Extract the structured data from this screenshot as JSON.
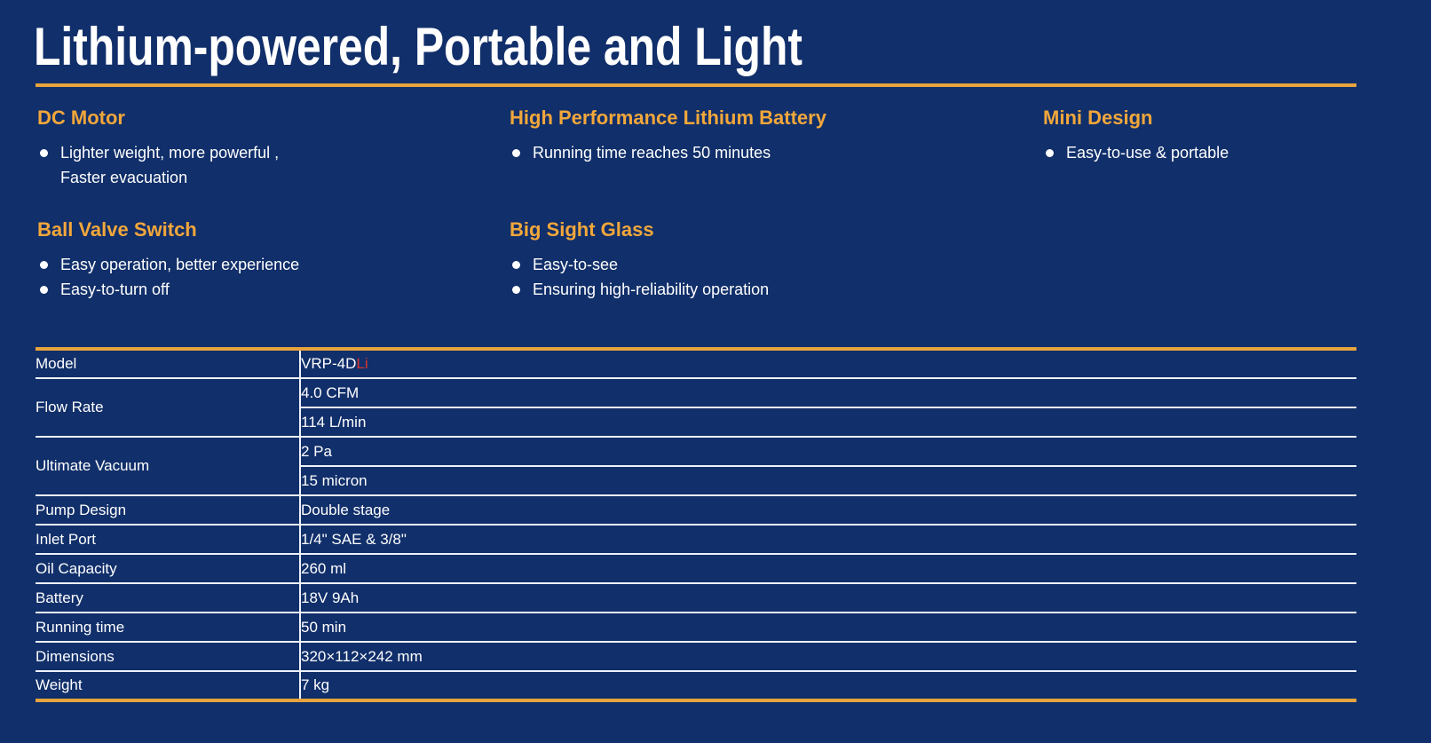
{
  "page": {
    "title": "Lithium-powered, Portable and Light"
  },
  "colors": {
    "background_navy": "#112f6a",
    "rule_gold": "#e7a43c",
    "heading_orange": "#f2a73b",
    "body_text_white": "#ffffff",
    "model_suffix_red": "#d9372e",
    "table_line_white": "#eef2f8"
  },
  "features": [
    {
      "heading": "DC Motor",
      "items": [
        {
          "lines": [
            "Lighter weight, more powerful ,",
            "Faster evacuation"
          ]
        }
      ]
    },
    {
      "heading": "High Performance Lithium Battery",
      "items": [
        {
          "lines": [
            "Running time reaches 50 minutes"
          ]
        }
      ]
    },
    {
      "heading": "Mini Design",
      "items": [
        {
          "lines": [
            "Easy-to-use & portable"
          ]
        }
      ]
    },
    {
      "heading": "Ball Valve Switch",
      "items": [
        {
          "lines": [
            "Easy operation, better experience"
          ]
        },
        {
          "lines": [
            "Easy-to-turn off"
          ]
        }
      ]
    },
    {
      "heading": "Big Sight Glass",
      "items": [
        {
          "lines": [
            "Easy-to-see"
          ]
        },
        {
          "lines": [
            "Ensuring high-reliability operation"
          ]
        }
      ]
    }
  ],
  "spec_table": {
    "rows": [
      {
        "label": "Model",
        "value": "VRP-4D",
        "value_accent": "Li"
      },
      {
        "label": "Flow Rate",
        "values": [
          "4.0 CFM",
          "114 L/min"
        ]
      },
      {
        "label": "Ultimate Vacuum",
        "values": [
          "2 Pa",
          "15 micron"
        ]
      },
      {
        "label": "Pump Design",
        "value": "Double stage"
      },
      {
        "label": "Inlet Port",
        "value": "1/4\" SAE & 3/8\""
      },
      {
        "label": "Oil Capacity",
        "value": "260 ml"
      },
      {
        "label": "Battery",
        "value": "18V 9Ah"
      },
      {
        "label": "Running time",
        "value": "50 min"
      },
      {
        "label": "Dimensions",
        "value": "320×112×242 mm"
      },
      {
        "label": "Weight",
        "value": "7 kg"
      }
    ]
  }
}
